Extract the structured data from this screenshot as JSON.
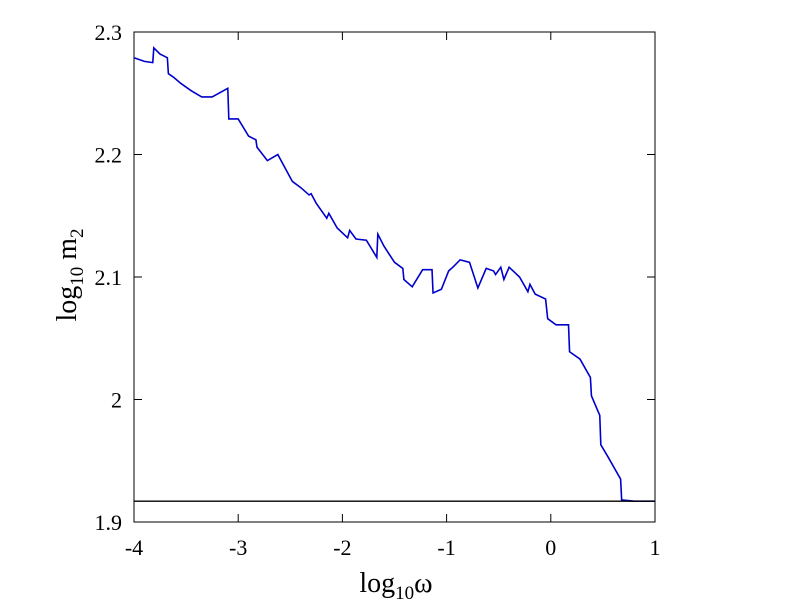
{
  "chart_data": {
    "type": "line",
    "xlabel": {
      "base": "log",
      "sub": "10",
      "var": "ω"
    },
    "ylabel": {
      "base": "log",
      "sub": "10",
      "var": " m",
      "var_sub": "2"
    },
    "xlim": [
      -4,
      1
    ],
    "ylim": [
      1.9,
      2.3
    ],
    "x_ticks": [
      -4,
      -3,
      -2,
      -1,
      0,
      1
    ],
    "x_tick_labels": [
      "-4",
      "-3",
      "-2",
      "-1",
      "0",
      "1"
    ],
    "y_ticks": [
      1.9,
      2.0,
      2.1,
      2.2,
      2.3
    ],
    "y_tick_labels": [
      "1.9",
      "2",
      "2.1",
      "2.2",
      "2.3"
    ],
    "grid": false,
    "series": [
      {
        "color": "#0000cc",
        "x": [
          -4.0,
          -3.9,
          -3.82,
          -3.81,
          -3.75,
          -3.68,
          -3.67,
          -3.62,
          -3.55,
          -3.45,
          -3.35,
          -3.25,
          -3.1,
          -3.09,
          -3.0,
          -2.9,
          -2.83,
          -2.82,
          -2.72,
          -2.62,
          -2.55,
          -2.48,
          -2.4,
          -2.32,
          -2.3,
          -2.25,
          -2.15,
          -2.13,
          -2.05,
          -1.95,
          -1.93,
          -1.87,
          -1.77,
          -1.67,
          -1.66,
          -1.6,
          -1.5,
          -1.42,
          -1.41,
          -1.33,
          -1.23,
          -1.14,
          -1.13,
          -1.05,
          -0.98,
          -0.94,
          -0.87,
          -0.78,
          -0.7,
          -0.69,
          -0.62,
          -0.55,
          -0.53,
          -0.48,
          -0.45,
          -0.4,
          -0.3,
          -0.22,
          -0.2,
          -0.15,
          -0.05,
          -0.03,
          0.05,
          0.17,
          0.18,
          0.28,
          0.38,
          0.39,
          0.47,
          0.48,
          0.55,
          0.67,
          0.68,
          0.8,
          1.0
        ],
        "y": [
          2.279,
          2.276,
          2.275,
          2.287,
          2.282,
          2.279,
          2.266,
          2.263,
          2.258,
          2.252,
          2.247,
          2.247,
          2.254,
          2.229,
          2.229,
          2.215,
          2.212,
          2.206,
          2.195,
          2.2,
          2.189,
          2.178,
          2.173,
          2.167,
          2.168,
          2.16,
          2.148,
          2.152,
          2.14,
          2.132,
          2.138,
          2.131,
          2.13,
          2.116,
          2.135,
          2.125,
          2.112,
          2.107,
          2.098,
          2.092,
          2.106,
          2.106,
          2.087,
          2.09,
          2.105,
          2.108,
          2.114,
          2.112,
          2.091,
          2.093,
          2.107,
          2.105,
          2.102,
          2.108,
          2.098,
          2.108,
          2.1,
          2.088,
          2.094,
          2.086,
          2.082,
          2.066,
          2.061,
          2.061,
          2.039,
          2.033,
          2.018,
          2.003,
          1.987,
          1.963,
          1.953,
          1.935,
          1.918,
          1.917,
          1.917
        ]
      },
      {
        "color": "#000000",
        "x": [
          -4.0,
          1.0
        ],
        "y": [
          1.917,
          1.917
        ]
      }
    ]
  }
}
